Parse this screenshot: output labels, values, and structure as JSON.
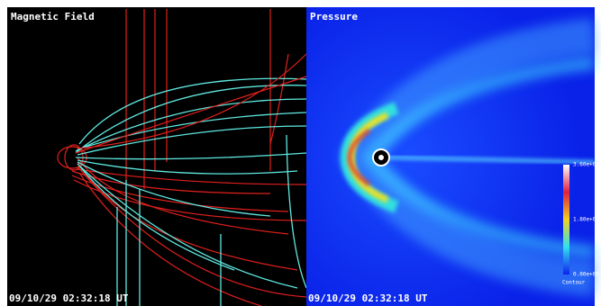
{
  "panels": [
    {
      "title": "Magnetic Field",
      "timestamp": "09/10/29 02:32:18 UT"
    },
    {
      "title": "Pressure",
      "timestamp": "09/10/29 02:32:18 UT",
      "colorbar": {
        "labels": [
          "3.60e+01",
          "1.80e+01",
          "0.00e+00"
        ],
        "caption": "Contour"
      }
    }
  ]
}
